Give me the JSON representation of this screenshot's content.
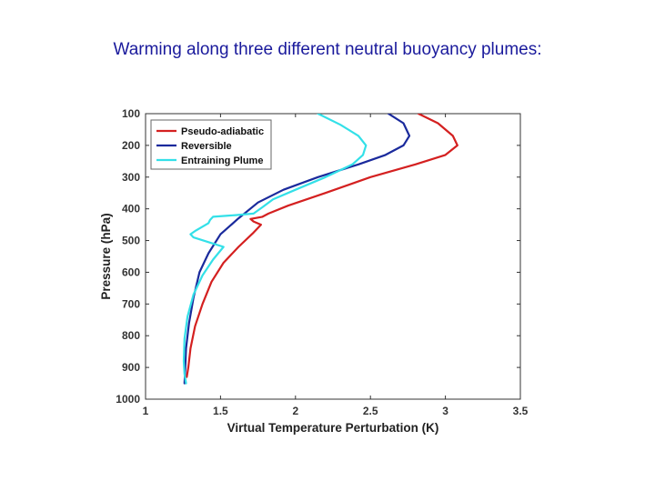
{
  "page": {
    "title": "Warming along three different neutral buoyancy plumes:"
  },
  "chart_data": {
    "type": "line",
    "title": "",
    "xlabel": "Virtual Temperature Perturbation (K)",
    "ylabel": "Pressure (hPa)",
    "xlim": [
      1,
      3.5
    ],
    "ylim": [
      100,
      1000
    ],
    "y_reversed": true,
    "xticks": [
      1,
      1.5,
      2,
      2.5,
      3,
      3.5
    ],
    "xtick_labels": [
      "1",
      "1.5",
      "2",
      "2.5",
      "3",
      "3.5"
    ],
    "yticks": [
      100,
      200,
      300,
      400,
      500,
      600,
      700,
      800,
      900,
      1000
    ],
    "ytick_labels": [
      "100",
      "200",
      "300",
      "400",
      "500",
      "600",
      "700",
      "800",
      "900",
      "1000"
    ],
    "grid": false,
    "legend_position": "top-left",
    "series": [
      {
        "name": "Pseudo-adiabatic",
        "color": "#d42020",
        "x": [
          2.82,
          2.95,
          3.05,
          3.08,
          3.0,
          2.8,
          2.5,
          2.2,
          1.95,
          1.82,
          1.78,
          1.7,
          1.72,
          1.77,
          1.72,
          1.62,
          1.52,
          1.44,
          1.38,
          1.33,
          1.3,
          1.285,
          1.275
        ],
        "y": [
          100,
          130,
          170,
          200,
          230,
          260,
          300,
          350,
          390,
          415,
          425,
          432,
          440,
          450,
          475,
          520,
          570,
          630,
          700,
          770,
          840,
          900,
          930
        ]
      },
      {
        "name": "Reversible",
        "color": "#1a2a9c",
        "x": [
          2.62,
          2.72,
          2.76,
          2.72,
          2.6,
          2.42,
          2.15,
          1.92,
          1.75,
          1.62,
          1.5,
          1.42,
          1.36,
          1.32,
          1.29,
          1.27,
          1.265,
          1.26
        ],
        "y": [
          100,
          130,
          170,
          200,
          230,
          260,
          300,
          340,
          380,
          430,
          480,
          540,
          600,
          680,
          760,
          840,
          900,
          950
        ]
      },
      {
        "name": "Entraining Plume",
        "color": "#33e0e8",
        "x": [
          2.15,
          2.3,
          2.42,
          2.47,
          2.45,
          2.38,
          2.2,
          2.0,
          1.85,
          1.78,
          1.72,
          1.6,
          1.45,
          1.43,
          1.42,
          1.33,
          1.3,
          1.32,
          1.42,
          1.52,
          1.45,
          1.38,
          1.32,
          1.28,
          1.26,
          1.255,
          1.26,
          1.27
        ],
        "y": [
          100,
          135,
          170,
          200,
          230,
          260,
          300,
          340,
          370,
          395,
          415,
          420,
          425,
          435,
          445,
          470,
          480,
          490,
          505,
          520,
          560,
          610,
          670,
          740,
          810,
          880,
          920,
          950
        ]
      }
    ]
  }
}
